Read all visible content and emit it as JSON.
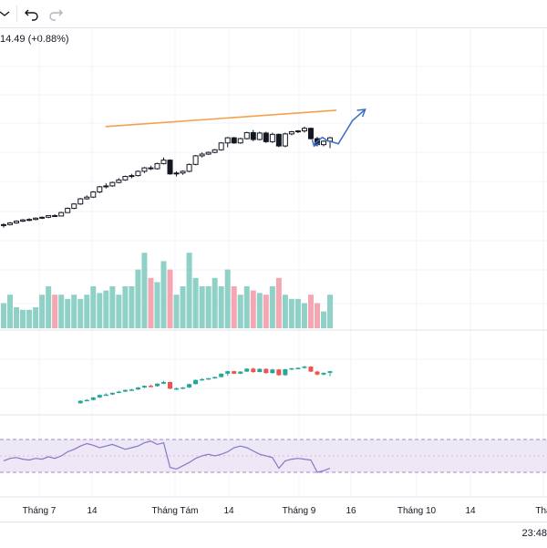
{
  "toolbar": {
    "icons": [
      "chevron-down-icon",
      "undo-icon",
      "redo-icon"
    ]
  },
  "legend": {
    "price_change": "14.49 (+0.88%)"
  },
  "x_axis": {
    "labels": [
      {
        "text": "Tháng 7",
        "pos": 43
      },
      {
        "text": "14",
        "pos": 101
      },
      {
        "text": "Tháng Tám",
        "pos": 192
      },
      {
        "text": "14",
        "pos": 251
      },
      {
        "text": "Tháng 9",
        "pos": 328
      },
      {
        "text": "16",
        "pos": 385
      },
      {
        "text": "Tháng 10",
        "pos": 457
      },
      {
        "text": "14",
        "pos": 516
      },
      {
        "text": "Thá",
        "pos": 596
      }
    ]
  },
  "status": {
    "time": "23:48"
  },
  "colors": {
    "up": "#26a69a",
    "down": "#ef5350",
    "vol_up": "#8fd1c6",
    "vol_down": "#f4a7b2",
    "trendline": "#f5a04a",
    "projection": "#3b6fc4",
    "rsi": "#8a77c2",
    "rsi_band": "#ede7f6"
  },
  "chart_data": {
    "type": "candlestick",
    "ohlc": [
      [
        1,
        1.5,
        0.5,
        1.2
      ],
      [
        1.2,
        1.8,
        1.0,
        1.6
      ],
      [
        1.6,
        2.2,
        1.4,
        2.0
      ],
      [
        2.0,
        2.5,
        1.8,
        2.3
      ],
      [
        2.3,
        2.7,
        2.0,
        2.4
      ],
      [
        2.4,
        2.9,
        2.2,
        2.7
      ],
      [
        2.7,
        3.1,
        2.5,
        2.9
      ],
      [
        2.9,
        3.4,
        2.7,
        3.3
      ],
      [
        3.3,
        3.6,
        3.0,
        3.2
      ],
      [
        3.2,
        4.2,
        3.1,
        4.0
      ],
      [
        4.0,
        5.2,
        3.9,
        5.0
      ],
      [
        5.0,
        6.2,
        4.8,
        6.0
      ],
      [
        6.0,
        7.4,
        5.8,
        7.2
      ],
      [
        7.2,
        8.0,
        7.0,
        7.6
      ],
      [
        7.6,
        9.0,
        7.4,
        8.8
      ],
      [
        8.8,
        10.2,
        8.5,
        10.0
      ],
      [
        10.0,
        10.8,
        9.6,
        10.2
      ],
      [
        10.2,
        11.2,
        10.0,
        11.0
      ],
      [
        11.0,
        12.0,
        10.8,
        11.6
      ],
      [
        11.6,
        12.6,
        11.4,
        12.4
      ],
      [
        12.4,
        13.0,
        12.0,
        12.6
      ],
      [
        12.6,
        13.8,
        12.4,
        13.6
      ],
      [
        13.6,
        14.6,
        13.2,
        14.4
      ],
      [
        14.4,
        14.9,
        13.9,
        14.2
      ],
      [
        14.2,
        15.6,
        14.0,
        15.4
      ],
      [
        15.4,
        16.8,
        15.2,
        16.2
      ],
      [
        16.2,
        16.4,
        12.8,
        13.0
      ],
      [
        13.0,
        13.6,
        12.4,
        13.2
      ],
      [
        13.2,
        13.8,
        12.8,
        13.6
      ],
      [
        13.6,
        15.4,
        13.4,
        15.2
      ],
      [
        15.2,
        17.4,
        15.0,
        17.2
      ],
      [
        17.2,
        18.0,
        16.8,
        17.6
      ],
      [
        17.6,
        18.2,
        17.4,
        18.0
      ],
      [
        18.0,
        18.8,
        17.8,
        18.6
      ],
      [
        18.6,
        20.4,
        18.4,
        20.2
      ],
      [
        20.2,
        21.6,
        19.2,
        21.4
      ],
      [
        21.4,
        21.6,
        20.0,
        20.2
      ],
      [
        20.2,
        21.4,
        20.0,
        21.2
      ],
      [
        21.2,
        22.8,
        21.0,
        22.6
      ],
      [
        22.6,
        23.2,
        20.6,
        21.0
      ],
      [
        21.0,
        22.8,
        20.8,
        22.5
      ],
      [
        22.5,
        22.8,
        20.2,
        20.5
      ],
      [
        20.5,
        22.6,
        20.2,
        22.2
      ],
      [
        22.2,
        22.4,
        19.2,
        19.5
      ],
      [
        19.5,
        22.6,
        19.2,
        22.3
      ],
      [
        22.3,
        23.0,
        22.0,
        22.8
      ],
      [
        22.8,
        23.2,
        22.5,
        23.0
      ],
      [
        23.0,
        24.0,
        22.6,
        23.6
      ],
      [
        23.6,
        23.8,
        21.0,
        21.2
      ],
      [
        21.2,
        21.6,
        19.4,
        19.8
      ],
      [
        19.8,
        20.8,
        19.4,
        20.6
      ],
      [
        20.6,
        21.6,
        19.0,
        21.4
      ]
    ],
    "volume": [
      3,
      4,
      2.5,
      2.2,
      2.2,
      2.5,
      4,
      5,
      4,
      4,
      3.5,
      4,
      3.5,
      4,
      5,
      4.2,
      4.5,
      5,
      4,
      5,
      5,
      7,
      9,
      6,
      5.5,
      8,
      7,
      4,
      5,
      9,
      6,
      5,
      5,
      6,
      5,
      7,
      5,
      4,
      5,
      4.5,
      4.2,
      4,
      5,
      6,
      4,
      3.5,
      3.5,
      3,
      4,
      3,
      2,
      4
    ],
    "rsi": [
      44,
      47,
      48,
      46,
      45,
      47,
      46,
      49,
      47,
      50,
      55,
      58,
      62,
      65,
      63,
      60,
      62,
      64,
      61,
      58,
      60,
      62,
      66,
      68,
      64,
      66,
      36,
      34,
      38,
      42,
      47,
      50,
      52,
      50,
      52,
      55,
      60,
      62,
      60,
      56,
      52,
      50,
      48,
      35,
      44,
      46,
      47,
      46,
      45,
      30,
      32,
      35
    ],
    "trendline": [
      [
        15.9,
        24.0
      ],
      [
        52,
        27.8
      ]
    ],
    "projection": [
      [
        48.5,
        19.9
      ],
      [
        49.8,
        21.5
      ],
      [
        50.5,
        20.8
      ],
      [
        52.3,
        20.0
      ],
      [
        54.5,
        25.4
      ],
      [
        56.5,
        28.0
      ],
      [
        55.5,
        27.3
      ]
    ],
    "rsi_band": [
      30,
      70
    ]
  }
}
